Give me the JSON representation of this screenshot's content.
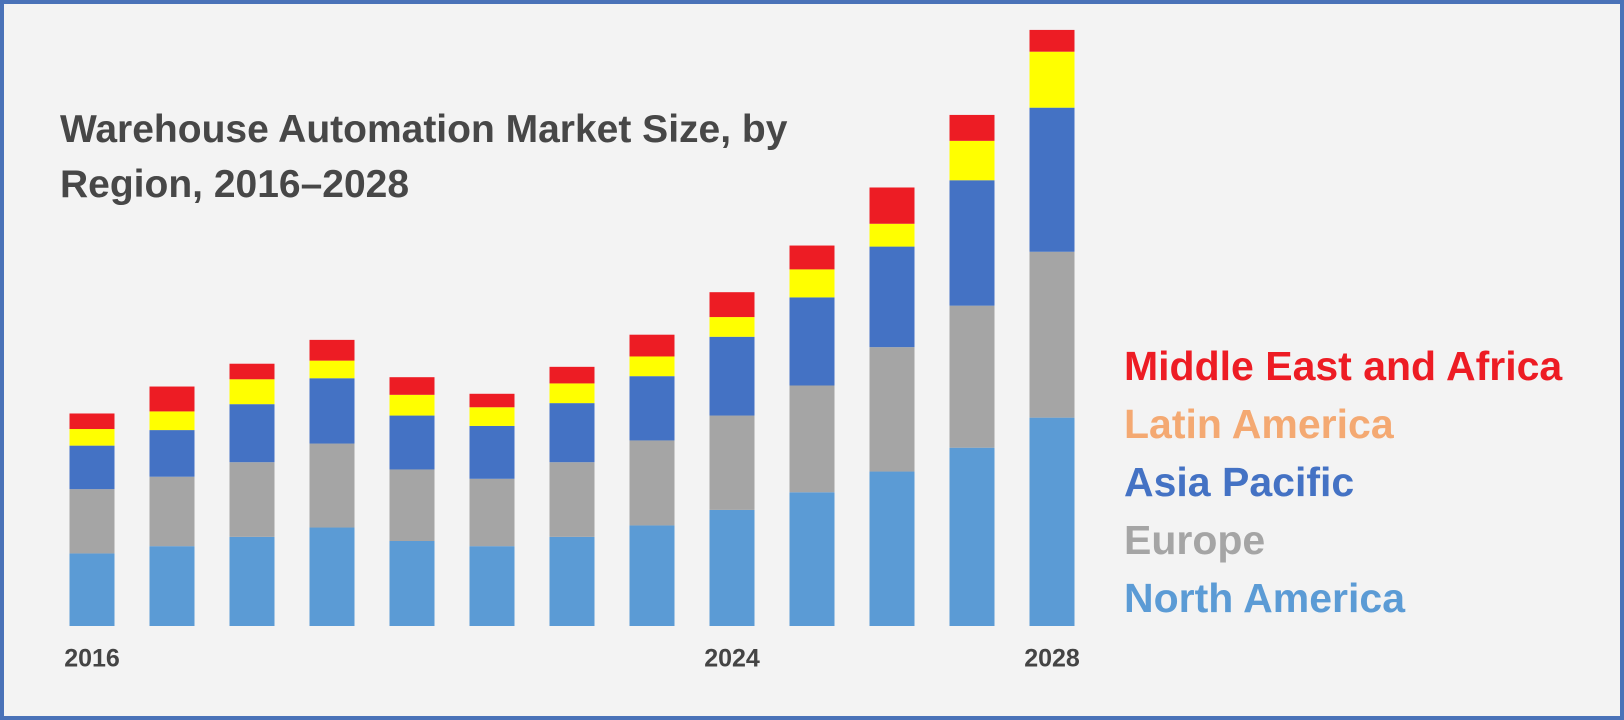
{
  "chart_data": {
    "type": "stacked_bar",
    "title": "Warehouse Automation Market Size, by Region, 2016–2028",
    "categories": [
      "2016",
      null,
      null,
      null,
      null,
      null,
      null,
      null,
      "2024",
      null,
      null,
      null,
      "2028"
    ],
    "series": [
      {
        "name": "North America",
        "color": "#5b9bd5",
        "text_color": "#5b9bd5",
        "values": [
          70,
          77,
          86,
          95,
          82,
          77,
          86,
          97,
          112,
          129,
          149,
          172,
          201
        ]
      },
      {
        "name": "Europe",
        "color": "#a5a5a5",
        "text_color": "#a5a5a5",
        "values": [
          62,
          67,
          72,
          81,
          69,
          65,
          72,
          82,
          91,
          103,
          120,
          137,
          160
        ]
      },
      {
        "name": "Asia Pacific",
        "color": "#4472c4",
        "text_color": "#4472c4",
        "values": [
          42,
          45,
          56,
          63,
          52,
          51,
          57,
          62,
          76,
          85,
          97,
          121,
          139
        ]
      },
      {
        "name": "Latin America",
        "color": "#ffff00",
        "text_color": "#f4a972",
        "values": [
          16,
          18,
          24,
          17,
          20,
          18,
          19,
          19,
          19,
          27,
          22,
          38,
          54
        ]
      },
      {
        "name": "Middle East and Africa",
        "color": "#ed1c24",
        "text_color": "#ed1c24",
        "values": [
          15,
          24,
          15,
          20,
          17,
          13,
          16,
          21,
          24,
          23,
          35,
          25,
          21
        ]
      }
    ],
    "ylim": [
      0,
      600
    ]
  }
}
